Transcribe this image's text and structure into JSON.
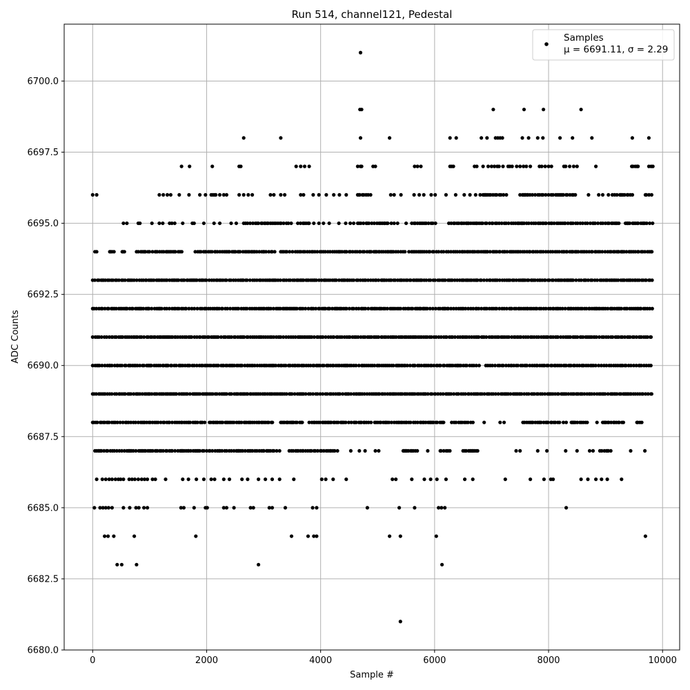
{
  "chart_data": {
    "type": "scatter",
    "title": "Run 514, channel121, Pedestal",
    "xlabel": "Sample #",
    "ylabel": "ADC Counts",
    "xlim": [
      -500,
      10300
    ],
    "ylim": [
      6680.0,
      6702.0
    ],
    "x_ticks": [
      0,
      2000,
      4000,
      6000,
      8000,
      10000
    ],
    "x_tick_labels": [
      "0",
      "2000",
      "4000",
      "6000",
      "8000",
      "10000"
    ],
    "y_ticks": [
      6680.0,
      6682.5,
      6685.0,
      6687.5,
      6690.0,
      6692.5,
      6695.0,
      6697.5,
      6700.0
    ],
    "y_tick_labels": [
      "6680.0",
      "6682.5",
      "6685.0",
      "6687.5",
      "6690.0",
      "6692.5",
      "6695.0",
      "6697.5",
      "6700.0"
    ],
    "grid": true,
    "legend_position": "top-right",
    "legend_line1": "Samples",
    "legend_line2": "μ = 6691.11, σ = 2.29",
    "series": [
      {
        "name": "Samples",
        "color": "#000000",
        "n_samples": 9830,
        "level_density": [
          {
            "y": 6681,
            "x_pts": [
              5400
            ]
          },
          {
            "y": 6683,
            "x_pts": [
              430,
              510,
              770,
              2910,
              6130
            ]
          },
          {
            "y": 6684,
            "x_pts": [
              210,
              270,
              370,
              730,
              1810,
              3490,
              3780,
              3880,
              3930,
              5210,
              5400,
              6030,
              9700
            ]
          },
          {
            "y": 6685,
            "x_pts": [
              30,
              130,
              180,
              230,
              280,
              340,
              540,
              650,
              760,
              810,
              900,
              960,
              1550,
              1600,
              1780,
              1980,
              2010,
              2300,
              2350,
              2480,
              2770,
              2820,
              3100,
              3150,
              3380,
              3860,
              3930,
              4820,
              5380,
              5650,
              6070,
              6120,
              6180,
              8310
            ]
          },
          {
            "y": 6686,
            "x_pts": [
              70,
              170,
              230,
              290,
              340,
              400,
              450,
              490,
              540,
              640,
              690,
              740,
              800,
              860,
              910,
              960,
              1050,
              1100,
              1280,
              1580,
              1680,
              1820,
              1950,
              2080,
              2140,
              2300,
              2400,
              2620,
              2720,
              2910,
              3030,
              3150,
              3280,
              3530,
              4020,
              4090,
              4220,
              4450,
              5260,
              5320,
              5600,
              5820,
              5930,
              6040,
              6200,
              6530,
              6670,
              7240,
              7680,
              7920,
              8040,
              8080,
              8570,
              8690,
              8830,
              8930,
              9030,
              9280
            ]
          },
          {
            "y": 6687,
            "dense_ranges": [
              [
                40,
                3300
              ],
              [
                3450,
                4320
              ],
              [
                5450,
                5700
              ],
              [
                6100,
                6300
              ],
              [
                6500,
                6800
              ],
              [
                8900,
                9100
              ]
            ],
            "x_pts": [
              4530,
              4680,
              4780,
              4960,
              5020,
              5880,
              7430,
              7500,
              7810,
              7970,
              8300,
              8500,
              8720,
              8780,
              9440,
              9690
            ]
          },
          {
            "y": 6688,
            "dense_ranges": [
              [
                0,
                2000
              ],
              [
                2050,
                3200
              ],
              [
                3300,
                3700
              ],
              [
                3800,
                4900
              ],
              [
                4950,
                6200
              ],
              [
                6300,
                6700
              ],
              [
                7550,
                8200
              ],
              [
                8400,
                8700
              ],
              [
                8950,
                9350
              ],
              [
                9550,
                9650
              ]
            ],
            "x_pts": [
              6870,
              7150,
              7220,
              8260,
              8310,
              8850
            ]
          },
          {
            "y": 6689,
            "dense_ranges": [
              [
                0,
                9830
              ]
            ]
          },
          {
            "y": 6690,
            "dense_ranges": [
              [
                0,
                6800
              ],
              [
                6900,
                9830
              ]
            ]
          },
          {
            "y": 6691,
            "dense_ranges": [
              [
                0,
                9830
              ]
            ]
          },
          {
            "y": 6692,
            "dense_ranges": [
              [
                0,
                9830
              ]
            ]
          },
          {
            "y": 6693,
            "dense_ranges": [
              [
                0,
                9830
              ]
            ]
          },
          {
            "y": 6694,
            "dense_ranges": [
              [
                300,
                420
              ],
              [
                520,
                560
              ],
              [
                770,
                1000
              ],
              [
                1050,
                1580
              ],
              [
                1800,
                3200
              ],
              [
                3300,
                5500
              ],
              [
                5550,
                9830
              ]
            ],
            "x_pts": [
              40,
              70
            ]
          },
          {
            "y": 6695,
            "dense_ranges": [
              [
                2650,
                3500
              ],
              [
                3600,
                3800
              ],
              [
                4650,
                5200
              ],
              [
                5600,
                6050
              ],
              [
                6250,
                9250
              ],
              [
                9350,
                9830
              ]
            ],
            "x_pts": [
              540,
              600,
              800,
              830,
              1040,
              1170,
              1230,
              1350,
              1390,
              1440,
              1580,
              1750,
              1780,
              1950,
              2130,
              2230,
              2430,
              2520,
              3880,
              3970,
              4050,
              4150,
              4320,
              4440,
              4520,
              4580,
              5240,
              5290,
              5350,
              5500
            ]
          },
          {
            "y": 6696,
            "dense_ranges": [
              [
                4650,
                4900
              ],
              [
                6850,
                7300
              ],
              [
                7500,
                8500
              ],
              [
                9200,
                9500
              ],
              [
                9700,
                9830
              ]
            ],
            "x_pts": [
              0,
              70,
              1170,
              1240,
              1310,
              1370,
              1520,
              1690,
              1880,
              1980,
              2080,
              2110,
              2140,
              2160,
              2230,
              2300,
              2350,
              2570,
              2650,
              2730,
              2800,
              3120,
              3180,
              3300,
              3370,
              3650,
              3700,
              3870,
              3970,
              4100,
              4230,
              4330,
              4450,
              5230,
              5290,
              5410,
              5640,
              5730,
              5810,
              5940,
              6010,
              6200,
              6370,
              6520,
              6620,
              6720,
              6800,
              8700,
              8880,
              8950,
              9050,
              9120,
              9160
            ]
          },
          {
            "y": 6697,
            "x_pts": [
              1560,
              1700,
              2100,
              2570,
              2600,
              3570,
              3650,
              3720,
              3800,
              4650,
              4700,
              4720,
              4920,
              4960,
              5650,
              5700,
              5760,
              6270,
              6300,
              6330,
              6700,
              6740,
              6850,
              6940,
              7000,
              7050,
              7100,
              7130,
              7200,
              7290,
              7320,
              7360,
              7440,
              7500,
              7560,
              7610,
              7680,
              7840,
              7880,
              7940,
              8000,
              8050,
              8270,
              8300,
              8370,
              8440,
              8500,
              8830,
              9460,
              9480,
              9520,
              9550,
              9570,
              9760,
              9800,
              9830
            ]
          },
          {
            "y": 6698,
            "x_pts": [
              2650,
              3300,
              4700,
              5210,
              6270,
              6380,
              6820,
              6920,
              7070,
              7110,
              7150,
              7190,
              7540,
              7650,
              7810,
              7900,
              8200,
              8420,
              8760,
              9470,
              9760
            ]
          },
          {
            "y": 6699,
            "x_pts": [
              4690,
              4720,
              7030,
              7570,
              7910,
              8570
            ]
          },
          {
            "y": 6701,
            "x_pts": [
              4700
            ]
          }
        ]
      }
    ]
  }
}
